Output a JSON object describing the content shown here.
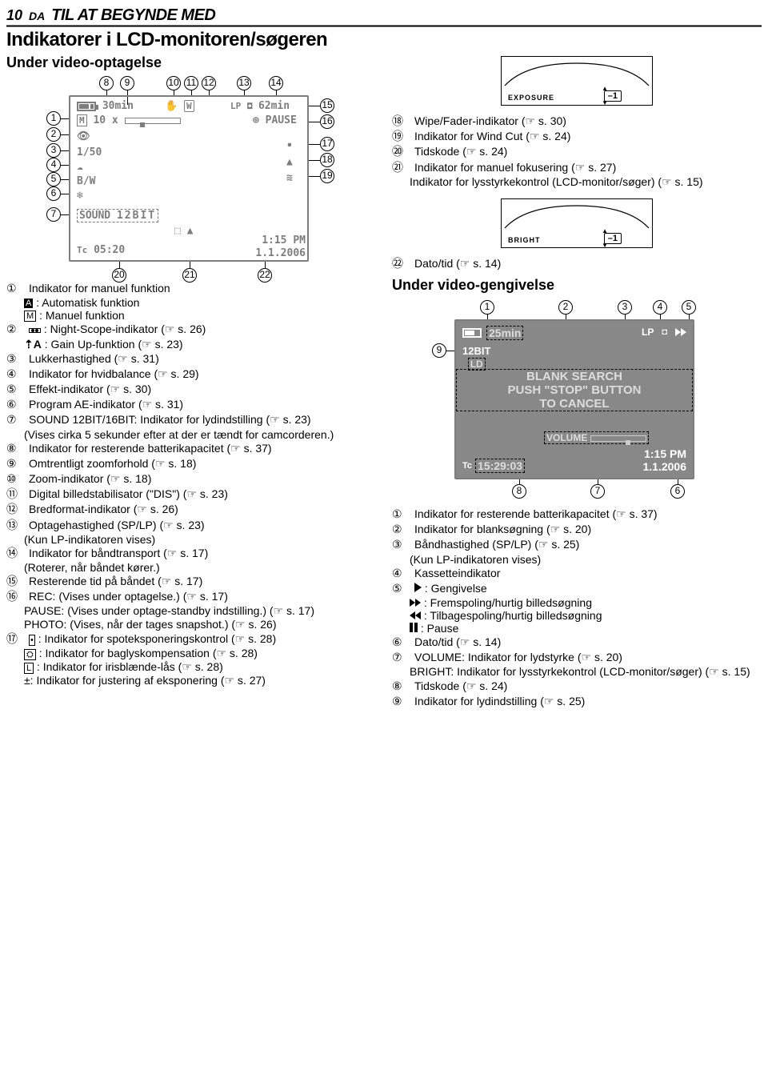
{
  "header": {
    "page": "10",
    "lang": "DA",
    "chapter": "TIL AT BEGYNDE MED"
  },
  "h1": "Indikatorer i LCD-monitoren/søgeren",
  "h2a": "Under video-optagelse",
  "h2b": "Under video-gengivelse",
  "lcd_rec": {
    "frame_color": "#7d7d7d",
    "remain": "30min",
    "tape_remain": "62min",
    "pause": "PAUSE",
    "zoom": "10 x",
    "shutter": "1/50",
    "effect": "B/W",
    "sound": "SOUND 12BIT",
    "sound_box": "12BIT",
    "tc": "05:20",
    "time": "1:15 PM",
    "date": "1.1.2006",
    "lp": "LP",
    "mode": "M",
    "lock": "L",
    "wide": "W",
    "exposure_label": "EXPOSURE",
    "exposure_val": "–1",
    "bright_label": "BRIGHT",
    "bright_val": "–1",
    "callouts": [
      "1",
      "2",
      "3",
      "4",
      "5",
      "6",
      "7",
      "8",
      "9",
      "10",
      "11",
      "12",
      "13",
      "14",
      "15",
      "16",
      "17",
      "18",
      "19",
      "20",
      "21",
      "22"
    ]
  },
  "lcd_play": {
    "bg": "#888888",
    "remain": "25min",
    "lp": "LP",
    "sound": "12BIT",
    "ld": "LD",
    "msg1": "BLANK SEARCH",
    "msg2": "PUSH \"STOP\" BUTTON",
    "msg3": "TO CANCEL",
    "vol": "VOLUME",
    "tc": "15:29:03",
    "time": "1:15 PM",
    "date": "1.1.2006",
    "tc_label": "Tc",
    "callouts": [
      "1",
      "2",
      "3",
      "4",
      "5",
      "6",
      "7",
      "8",
      "9"
    ]
  },
  "left_list": [
    {
      "n": "①",
      "t": "Indikator for manuel funktion"
    },
    {
      "sub": true,
      "icon": "A",
      "t": ": Automatisk funktion"
    },
    {
      "sub": true,
      "icon": "M",
      "t": ": Manuel funktion"
    },
    {
      "n": "②",
      "icon": "scope",
      "t": ": Night-Scope-indikator",
      "ref": "(☞ s. 26)"
    },
    {
      "sub": true,
      "icon": "gainA",
      "t": ": Gain Up-funktion",
      "ref": "(☞ s. 23)"
    },
    {
      "n": "③",
      "t": "Lukkerhastighed",
      "ref": "(☞ s. 31)"
    },
    {
      "n": "④",
      "t": "Indikator for hvidbalance",
      "ref": "(☞ s. 29)"
    },
    {
      "n": "⑤",
      "t": "Effekt-indikator",
      "ref": "(☞ s. 30)"
    },
    {
      "n": "⑥",
      "t": "Program AE-indikator",
      "ref": "(☞ s. 31)"
    },
    {
      "n": "⑦",
      "t": "SOUND 12BIT/16BIT: Indikator for lydindstilling",
      "ref": "(☞ s. 23)"
    },
    {
      "sub": true,
      "t": "(Vises cirka 5 sekunder efter at der er tændt for camcorderen.)"
    },
    {
      "n": "⑧",
      "t": "Indikator for resterende batterikapacitet",
      "ref": "(☞ s. 37)"
    },
    {
      "n": "⑨",
      "t": "Omtrentligt zoomforhold",
      "ref": "(☞ s. 18)"
    },
    {
      "n": "⑩",
      "t": "Zoom-indikator",
      "ref": "(☞ s. 18)"
    },
    {
      "n": "⑪",
      "t": "Digital billedstabilisator (\"DIS\")",
      "ref": "(☞ s. 23)"
    },
    {
      "n": "⑫",
      "t": "Bredformat-indikator",
      "ref": "(☞ s. 26)"
    },
    {
      "n": "⑬",
      "t": "Optagehastighed (SP/LP)",
      "ref": "(☞ s. 23)"
    },
    {
      "sub": true,
      "t": "(Kun LP-indikatoren vises)"
    },
    {
      "n": "⑭",
      "t": "Indikator for båndtransport",
      "ref": "(☞ s. 17)"
    },
    {
      "sub": true,
      "t": "(Roterer, når båndet kører.)"
    },
    {
      "n": "⑮",
      "t": "Resterende tid på båndet",
      "ref": "(☞ s. 17)"
    },
    {
      "n": "⑯",
      "t": "REC: (Vises under optagelse.)",
      "ref": "(☞ s. 17)"
    },
    {
      "sub": true,
      "t": "PAUSE: (Vises under optage-standby indstilling.)",
      "ref": "(☞ s. 17)"
    },
    {
      "sub": true,
      "t": "PHOTO: (Vises, når der tages snapshot.)",
      "ref": "(☞ s. 26)"
    },
    {
      "n": "⑰",
      "icon": "spot",
      "t": ": Indikator for spoteksponeringskontrol",
      "ref": "(☞ s. 28)"
    },
    {
      "sub": true,
      "icon": "back",
      "t": ": Indikator for baglyskompensation",
      "ref": "(☞ s. 28)"
    },
    {
      "sub": true,
      "icon": "L",
      "t": " : Indikator for irisblænde-lås",
      "ref": "(☞ s. 28)"
    },
    {
      "sub": true,
      "t": "±: Indikator for justering af eksponering",
      "ref": "(☞ s. 27)"
    }
  ],
  "right_list_top": [
    {
      "n": "⑱",
      "t": "Wipe/Fader-indikator",
      "ref": "(☞ s. 30)"
    },
    {
      "n": "⑲",
      "t": "Indikator for Wind Cut",
      "ref": "(☞ s. 24)"
    },
    {
      "n": "⑳",
      "t": "Tidskode",
      "ref": "(☞ s. 24)"
    },
    {
      "n": "㉑",
      "t": "Indikator for manuel fokusering",
      "ref": "(☞ s. 27)"
    },
    {
      "sub": true,
      "t": "Indikator for lysstyrkekontrol (LCD-monitor/søger)",
      "ref": "(☞ s. 15)"
    }
  ],
  "right_after_bright": {
    "n": "㉒",
    "t": "Dato/tid",
    "ref": "(☞ s. 14)"
  },
  "right_list_play": [
    {
      "n": "①",
      "t": "Indikator for resterende batterikapacitet",
      "ref": "(☞ s. 37)"
    },
    {
      "n": "②",
      "t": "Indikator for blanksøgning",
      "ref": "(☞ s. 20)"
    },
    {
      "n": "③",
      "t": "Båndhastighed (SP/LP)",
      "ref": "(☞ s. 25)"
    },
    {
      "sub": true,
      "t": "(Kun LP-indikatoren vises)"
    },
    {
      "n": "④",
      "t": "Kassetteindikator"
    },
    {
      "n": "⑤",
      "icon": "play",
      "t": ": Gengivelse"
    },
    {
      "sub": true,
      "icon": "ff",
      "t": ": Fremspoling/hurtig billedsøgning"
    },
    {
      "sub": true,
      "icon": "rw",
      "t": ": Tilbagespoling/hurtig billedsøgning"
    },
    {
      "sub": true,
      "icon": "pause",
      "t": ": Pause"
    },
    {
      "n": "⑥",
      "t": "Dato/tid",
      "ref": "(☞ s. 14)"
    },
    {
      "n": "⑦",
      "t": "VOLUME: Indikator for lydstyrke",
      "ref": "(☞ s. 20)"
    },
    {
      "sub": true,
      "t": "BRIGHT: Indikator for lysstyrkekontrol (LCD-monitor/søger)",
      "ref": "(☞ s. 15)"
    },
    {
      "n": "⑧",
      "t": "Tidskode",
      "ref": "(☞ s. 24)"
    },
    {
      "n": "⑨",
      "t": "Indikator for lydindstilling",
      "ref": "(☞ s. 25)"
    }
  ],
  "colors": {
    "frame": "#7d7d7d",
    "lcd_play_bg": "#888888",
    "text": "#000000",
    "white": "#ffffff"
  }
}
